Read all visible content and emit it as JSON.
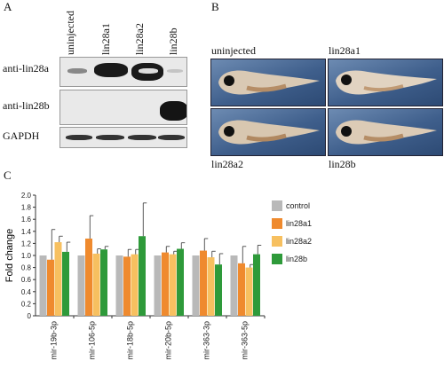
{
  "panels": {
    "a": "A",
    "b": "B",
    "c": "C"
  },
  "western": {
    "lanes": [
      "uninjected",
      "lin28a1",
      "lin28a2",
      "lin28b"
    ],
    "rows": [
      "anti-lin28a",
      "anti-lin28b",
      "GAPDH"
    ]
  },
  "embryos": {
    "labels": [
      "uninjected",
      "lin28a1",
      "lin28a2",
      "lin28b"
    ]
  },
  "chart_data": {
    "type": "bar",
    "ylabel": "Fold change",
    "ylim": [
      0,
      2.0
    ],
    "yticks": [
      "0",
      "0.2",
      "0.4",
      "0.6",
      "0.8",
      "1.0",
      "1.2",
      "1.4",
      "1.6",
      "1.8",
      "2.0"
    ],
    "categories": [
      "mir-19b-3p",
      "mir-106-5p",
      "mir-18b-5p",
      "mir-20b-5p",
      "mir-363-3p",
      "mir-363-5p"
    ],
    "series": [
      {
        "name": "control",
        "color": "#b9b9b9",
        "values": [
          1.0,
          1.0,
          1.0,
          1.0,
          1.0,
          1.0
        ],
        "errors": [
          0,
          0,
          0,
          0,
          0,
          0
        ]
      },
      {
        "name": "lin28a1",
        "color": "#ef8a2e",
        "values": [
          0.93,
          1.28,
          0.98,
          1.05,
          1.08,
          0.87
        ],
        "errors": [
          0.5,
          0.38,
          0.12,
          0.1,
          0.2,
          0.28
        ]
      },
      {
        "name": "lin28a2",
        "color": "#f7c060",
        "values": [
          1.22,
          1.03,
          1.02,
          1.02,
          0.97,
          0.8
        ],
        "errors": [
          0.1,
          0.08,
          0.08,
          0.05,
          0.1,
          0.05
        ]
      },
      {
        "name": "lin28b",
        "color": "#2e9a3a",
        "values": [
          1.06,
          1.1,
          1.32,
          1.11,
          0.85,
          1.02
        ],
        "errors": [
          0.16,
          0.05,
          0.55,
          0.1,
          0.18,
          0.15
        ]
      }
    ],
    "legend_position": "right",
    "grid": false
  }
}
